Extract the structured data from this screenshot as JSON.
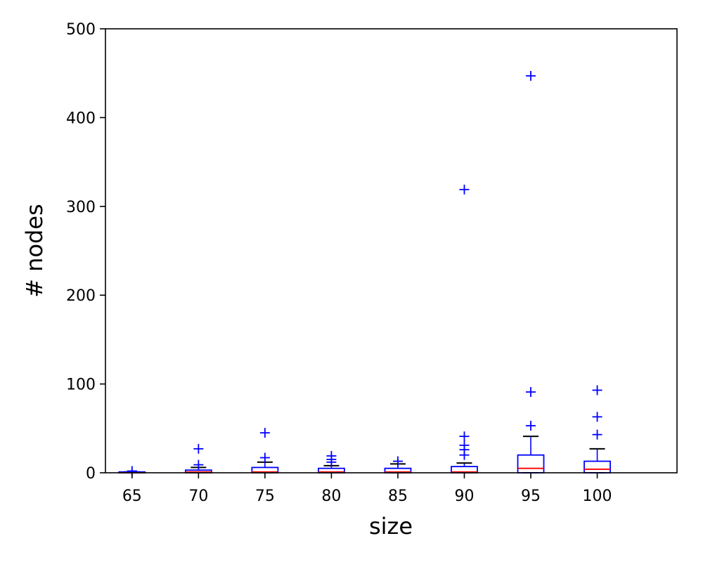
{
  "chart_data": {
    "type": "box",
    "xlabel": "size",
    "ylabel": "# nodes",
    "categories": [
      "65",
      "70",
      "75",
      "80",
      "85",
      "90",
      "95",
      "100"
    ],
    "ylim": [
      0,
      500
    ],
    "yticks": [
      0,
      100,
      200,
      300,
      400,
      500
    ],
    "xlim": [
      63,
      106
    ],
    "grid": false,
    "colors": {
      "box": "#0000ff",
      "median": "#ff0000",
      "cap": "#000000",
      "flier": "#0000ff"
    },
    "boxes": [
      {
        "category": "65",
        "q1": 0,
        "median": 0,
        "q3": 1,
        "whisker_low": 0,
        "whisker_high": 1,
        "fliers": [
          2
        ]
      },
      {
        "category": "70",
        "q1": 0,
        "median": 1,
        "q3": 3,
        "whisker_low": 0,
        "whisker_high": 6,
        "fliers": [
          9,
          27
        ]
      },
      {
        "category": "75",
        "q1": 0,
        "median": 1,
        "q3": 6,
        "whisker_low": 0,
        "whisker_high": 12,
        "fliers": [
          17,
          45
        ]
      },
      {
        "category": "80",
        "q1": 0,
        "median": 1,
        "q3": 5,
        "whisker_low": 0,
        "whisker_high": 8,
        "fliers": [
          12,
          15,
          19
        ]
      },
      {
        "category": "85",
        "q1": 0,
        "median": 1,
        "q3": 5,
        "whisker_low": 0,
        "whisker_high": 10,
        "fliers": [
          13
        ]
      },
      {
        "category": "90",
        "q1": 0,
        "median": 1,
        "q3": 7,
        "whisker_low": 0,
        "whisker_high": 11,
        "fliers": [
          20,
          26,
          31,
          41,
          319
        ]
      },
      {
        "category": "95",
        "q1": 0,
        "median": 5,
        "q3": 20,
        "whisker_low": 0,
        "whisker_high": 41,
        "fliers": [
          53,
          91,
          447
        ]
      },
      {
        "category": "100",
        "q1": 0,
        "median": 4,
        "q3": 13,
        "whisker_low": 0,
        "whisker_high": 27,
        "fliers": [
          43,
          63,
          93
        ]
      }
    ]
  }
}
